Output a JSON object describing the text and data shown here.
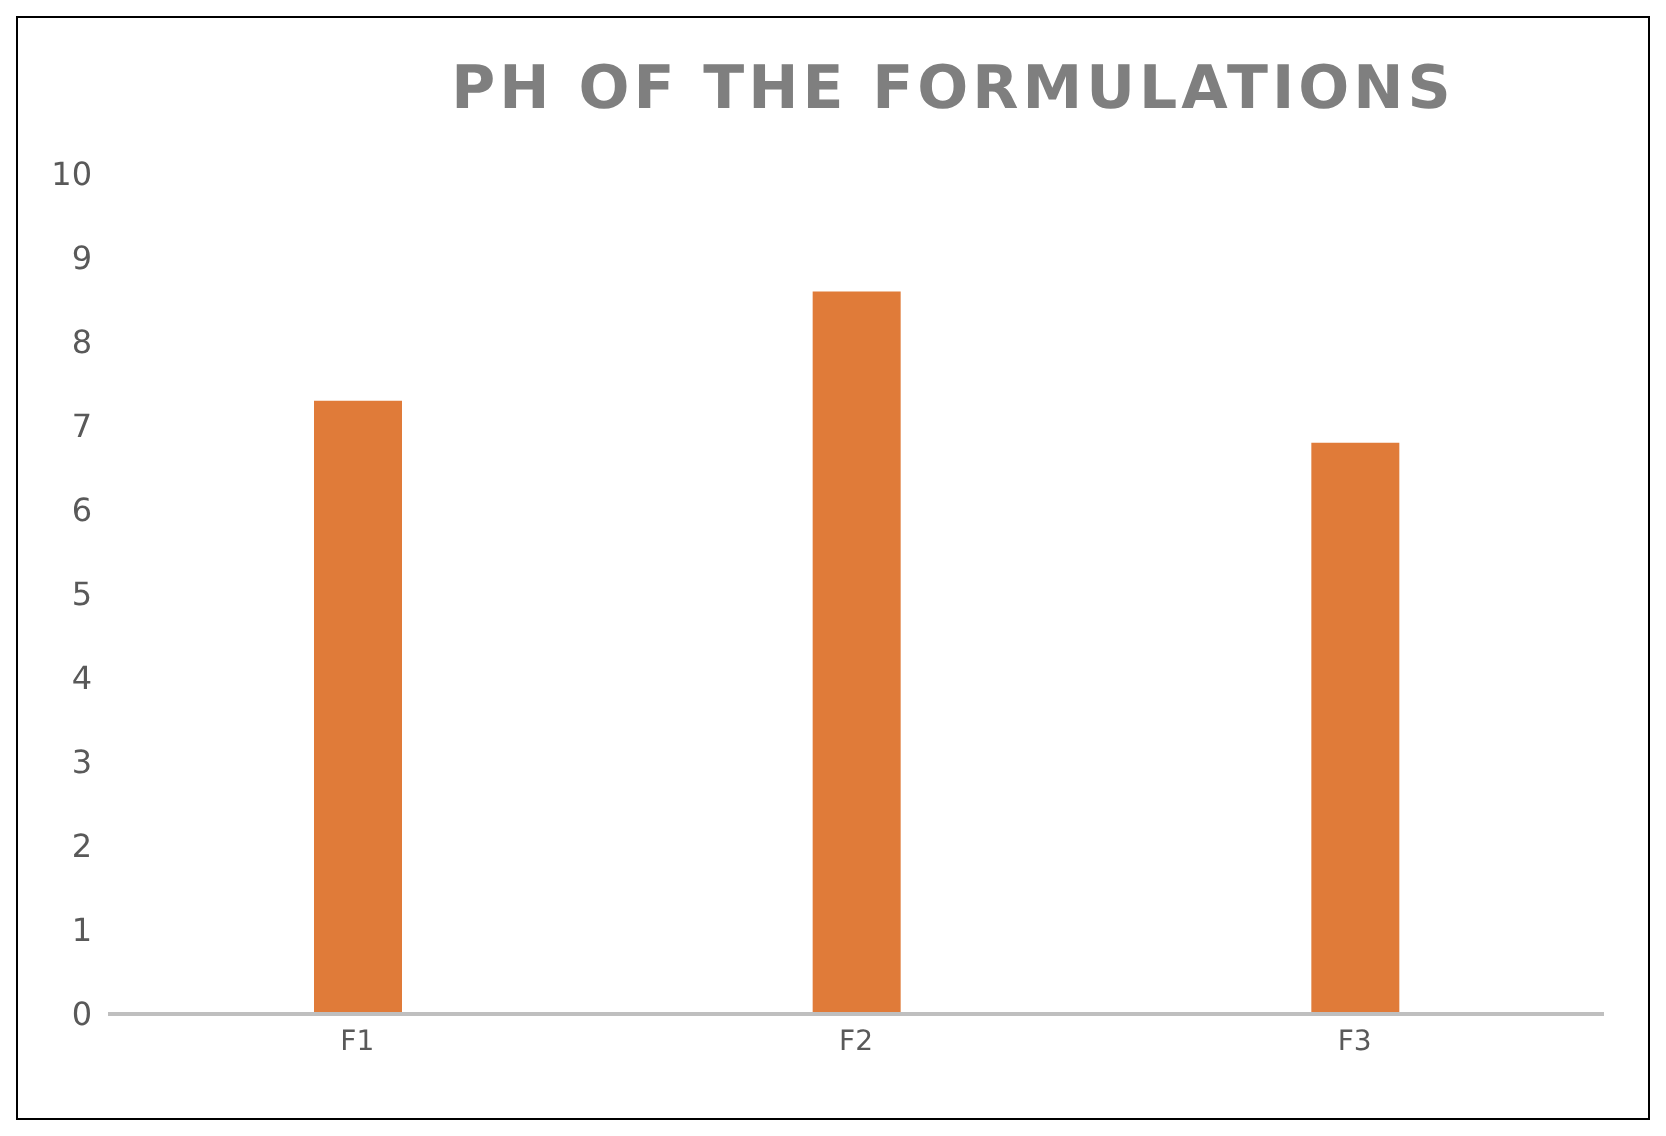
{
  "chart_data": {
    "type": "bar",
    "title": "PH OF THE FORMULATIONS",
    "categories": [
      "F1",
      "F2",
      "F3"
    ],
    "values": [
      7.3,
      8.6,
      6.8
    ],
    "color": "#e07b39",
    "ylim": [
      0,
      10
    ],
    "yticks": [
      0,
      1,
      2,
      3,
      4,
      5,
      6,
      7,
      8,
      9,
      10
    ],
    "grid": false,
    "legend": false
  }
}
